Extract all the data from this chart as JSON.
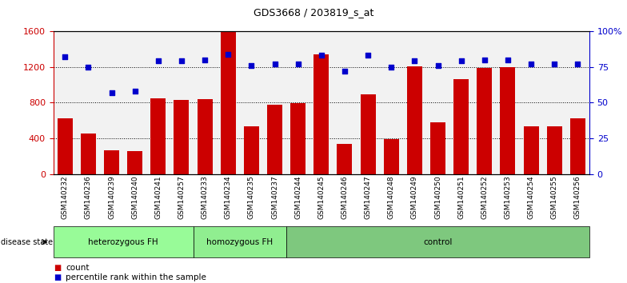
{
  "title": "GDS3668 / 203819_s_at",
  "samples": [
    "GSM140232",
    "GSM140236",
    "GSM140239",
    "GSM140240",
    "GSM140241",
    "GSM140257",
    "GSM140233",
    "GSM140234",
    "GSM140235",
    "GSM140237",
    "GSM140244",
    "GSM140245",
    "GSM140246",
    "GSM140247",
    "GSM140248",
    "GSM140249",
    "GSM140250",
    "GSM140251",
    "GSM140252",
    "GSM140253",
    "GSM140254",
    "GSM140255",
    "GSM140256"
  ],
  "counts": [
    620,
    450,
    270,
    255,
    850,
    830,
    840,
    1590,
    530,
    775,
    790,
    1340,
    340,
    890,
    390,
    1210,
    580,
    1060,
    1190,
    1200,
    530,
    530,
    620
  ],
  "percentiles": [
    82,
    75,
    57,
    58,
    79,
    79,
    80,
    84,
    76,
    77,
    77,
    83,
    72,
    83,
    75,
    79,
    76,
    79,
    80,
    80,
    77,
    77,
    77
  ],
  "groups": [
    {
      "label": "heterozygous FH",
      "start": 0,
      "end": 6,
      "color": "#98fb98"
    },
    {
      "label": "homozygous FH",
      "start": 6,
      "end": 10,
      "color": "#90ee90"
    },
    {
      "label": "control",
      "start": 10,
      "end": 23,
      "color": "#7ec87e"
    }
  ],
  "bar_color": "#cc0000",
  "dot_color": "#0000cc",
  "ylim_left": [
    0,
    1600
  ],
  "ylim_right": [
    0,
    100
  ],
  "yticks_left": [
    0,
    400,
    800,
    1200,
    1600
  ],
  "yticks_right": [
    0,
    25,
    50,
    75,
    100
  ],
  "ytick_labels_right": [
    "0",
    "25",
    "50",
    "75",
    "100%"
  ],
  "bg_color": "#f2f2f2",
  "legend_count_color": "#cc0000",
  "legend_dot_color": "#0000cc"
}
